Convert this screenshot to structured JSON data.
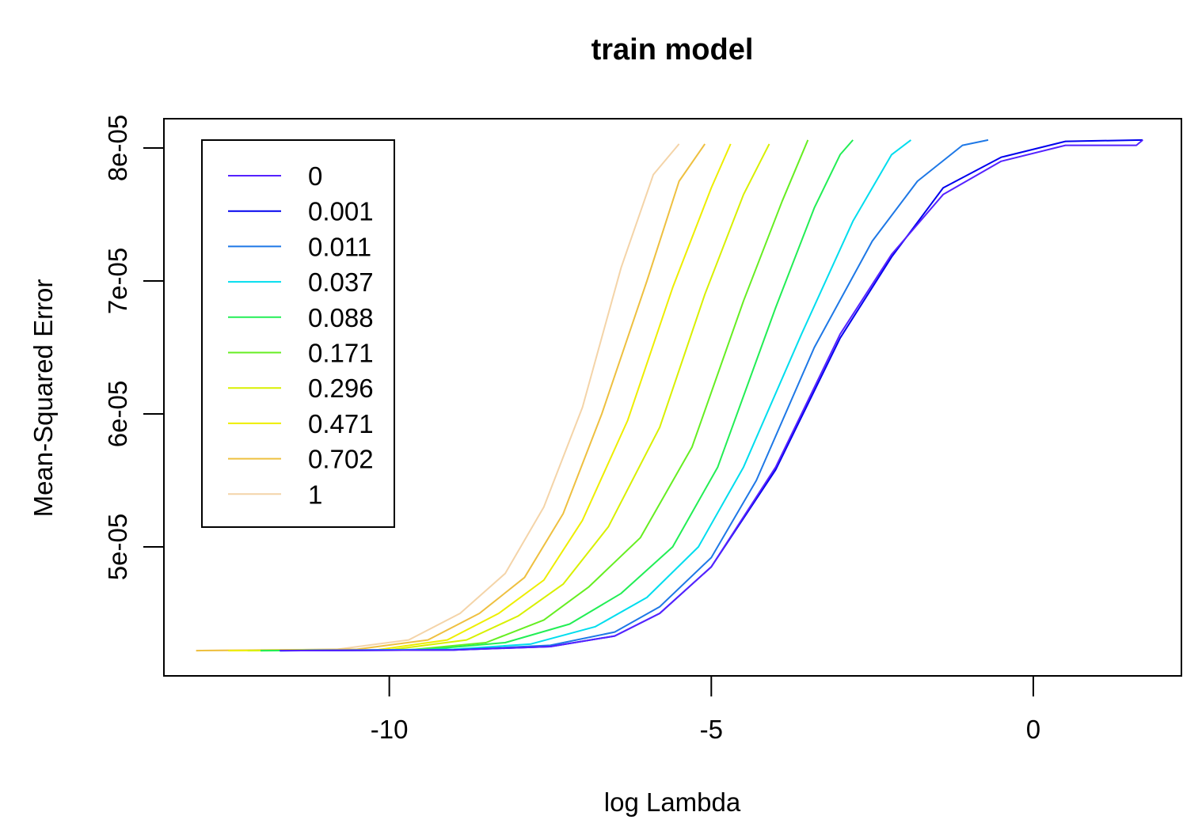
{
  "chart_data": {
    "type": "line",
    "title": "train model",
    "xlabel": "log Lambda",
    "ylabel": "Mean-Squared Error",
    "xlim": [
      -13.5,
      2.3
    ],
    "ylim": [
      4.03e-05,
      8.22e-05
    ],
    "x_ticks": [
      {
        "value": -10,
        "label": "-10"
      },
      {
        "value": -5,
        "label": "-5"
      },
      {
        "value": 0,
        "label": "0"
      }
    ],
    "y_ticks": [
      {
        "value": 5e-05,
        "label": "5e-05"
      },
      {
        "value": 6e-05,
        "label": "6e-05"
      },
      {
        "value": 7e-05,
        "label": "7e-05"
      },
      {
        "value": 8e-05,
        "label": "8e-05"
      }
    ],
    "grid": false,
    "legend": {
      "placement": "top-left"
    },
    "series": [
      {
        "name": "0",
        "color": "#5522FF",
        "points": [
          [
            -11.7,
            4.22e-05
          ],
          [
            -9,
            4.225e-05
          ],
          [
            -7.5,
            4.25e-05
          ],
          [
            -6.5,
            4.33e-05
          ],
          [
            -5.8,
            4.5e-05
          ],
          [
            -5,
            4.85e-05
          ],
          [
            -4,
            5.6e-05
          ],
          [
            -3,
            6.6e-05
          ],
          [
            -2.2,
            7.2e-05
          ],
          [
            -1.4,
            7.65e-05
          ],
          [
            -0.5,
            7.9e-05
          ],
          [
            0.5,
            8.02e-05
          ],
          [
            1.6,
            8.02e-05
          ],
          [
            1.7,
            8.06e-05
          ]
        ]
      },
      {
        "name": "0.001",
        "color": "#0000EE",
        "points": [
          [
            -11.7,
            4.22e-05
          ],
          [
            -9,
            4.225e-05
          ],
          [
            -7.5,
            4.25e-05
          ],
          [
            -6.5,
            4.33e-05
          ],
          [
            -5.8,
            4.5e-05
          ],
          [
            -5,
            4.85e-05
          ],
          [
            -4,
            5.58e-05
          ],
          [
            -3,
            6.57e-05
          ],
          [
            -2.2,
            7.18e-05
          ],
          [
            -1.4,
            7.7e-05
          ],
          [
            -0.5,
            7.93e-05
          ],
          [
            0.5,
            8.05e-05
          ],
          [
            1.7,
            8.06e-05
          ]
        ]
      },
      {
        "name": "0.011",
        "color": "#1E78E6",
        "points": [
          [
            -11.7,
            4.22e-05
          ],
          [
            -9,
            4.225e-05
          ],
          [
            -7.5,
            4.26e-05
          ],
          [
            -6.5,
            4.36e-05
          ],
          [
            -5.8,
            4.55e-05
          ],
          [
            -5,
            4.92e-05
          ],
          [
            -4.3,
            5.5e-05
          ],
          [
            -3.4,
            6.5e-05
          ],
          [
            -2.5,
            7.3e-05
          ],
          [
            -1.8,
            7.75e-05
          ],
          [
            -1.1,
            8.02e-05
          ],
          [
            -0.7,
            8.06e-05
          ]
        ]
      },
      {
        "name": "0.037",
        "color": "#00DDEE",
        "points": [
          [
            -11.7,
            4.22e-05
          ],
          [
            -9,
            4.23e-05
          ],
          [
            -7.8,
            4.27e-05
          ],
          [
            -6.8,
            4.4e-05
          ],
          [
            -6,
            4.62e-05
          ],
          [
            -5.2,
            5e-05
          ],
          [
            -4.5,
            5.6e-05
          ],
          [
            -3.6,
            6.6e-05
          ],
          [
            -2.8,
            7.45e-05
          ],
          [
            -2.2,
            7.95e-05
          ],
          [
            -1.9,
            8.06e-05
          ]
        ]
      },
      {
        "name": "0.088",
        "color": "#22EE55",
        "points": [
          [
            -12,
            4.22e-05
          ],
          [
            -9.5,
            4.225e-05
          ],
          [
            -8.2,
            4.28e-05
          ],
          [
            -7.2,
            4.42e-05
          ],
          [
            -6.4,
            4.65e-05
          ],
          [
            -5.6,
            5e-05
          ],
          [
            -4.9,
            5.6e-05
          ],
          [
            -4,
            6.8e-05
          ],
          [
            -3.4,
            7.55e-05
          ],
          [
            -3,
            7.95e-05
          ],
          [
            -2.8,
            8.06e-05
          ]
        ]
      },
      {
        "name": "0.171",
        "color": "#66EE22",
        "points": [
          [
            -12,
            4.22e-05
          ],
          [
            -9.7,
            4.225e-05
          ],
          [
            -8.5,
            4.28e-05
          ],
          [
            -7.6,
            4.45e-05
          ],
          [
            -6.9,
            4.7e-05
          ],
          [
            -6.1,
            5.07e-05
          ],
          [
            -5.3,
            5.75e-05
          ],
          [
            -4.5,
            6.85e-05
          ],
          [
            -3.9,
            7.6e-05
          ],
          [
            -3.5,
            8.06e-05
          ]
        ]
      },
      {
        "name": "0.296",
        "color": "#D8F000",
        "points": [
          [
            -12.2,
            4.22e-05
          ],
          [
            -10,
            4.225e-05
          ],
          [
            -8.8,
            4.3e-05
          ],
          [
            -8,
            4.48e-05
          ],
          [
            -7.3,
            4.72e-05
          ],
          [
            -6.6,
            5.15e-05
          ],
          [
            -5.8,
            5.9e-05
          ],
          [
            -5.1,
            6.9e-05
          ],
          [
            -4.5,
            7.65e-05
          ],
          [
            -4.1,
            8.03e-05
          ]
        ]
      },
      {
        "name": "0.471",
        "color": "#EEEE00",
        "points": [
          [
            -12.5,
            4.22e-05
          ],
          [
            -10.2,
            4.225e-05
          ],
          [
            -9.1,
            4.3e-05
          ],
          [
            -8.3,
            4.5e-05
          ],
          [
            -7.6,
            4.75e-05
          ],
          [
            -7,
            5.2e-05
          ],
          [
            -6.3,
            5.95e-05
          ],
          [
            -5.6,
            6.95e-05
          ],
          [
            -5,
            7.7e-05
          ],
          [
            -4.7,
            8.03e-05
          ]
        ]
      },
      {
        "name": "0.702",
        "color": "#EEC040",
        "points": [
          [
            -13,
            4.22e-05
          ],
          [
            -10.5,
            4.23e-05
          ],
          [
            -9.4,
            4.3e-05
          ],
          [
            -8.6,
            4.5e-05
          ],
          [
            -7.9,
            4.77e-05
          ],
          [
            -7.3,
            5.25e-05
          ],
          [
            -6.7,
            6e-05
          ],
          [
            -6,
            7e-05
          ],
          [
            -5.5,
            7.75e-05
          ],
          [
            -5.1,
            8.03e-05
          ]
        ]
      },
      {
        "name": "1",
        "color": "#F4D4A8",
        "points": [
          [
            -13,
            4.22e-05
          ],
          [
            -10.8,
            4.23e-05
          ],
          [
            -9.7,
            4.3e-05
          ],
          [
            -8.9,
            4.5e-05
          ],
          [
            -8.2,
            4.8e-05
          ],
          [
            -7.6,
            5.3e-05
          ],
          [
            -7,
            6.05e-05
          ],
          [
            -6.4,
            7.1e-05
          ],
          [
            -5.9,
            7.8e-05
          ],
          [
            -5.5,
            8.03e-05
          ]
        ]
      }
    ]
  }
}
